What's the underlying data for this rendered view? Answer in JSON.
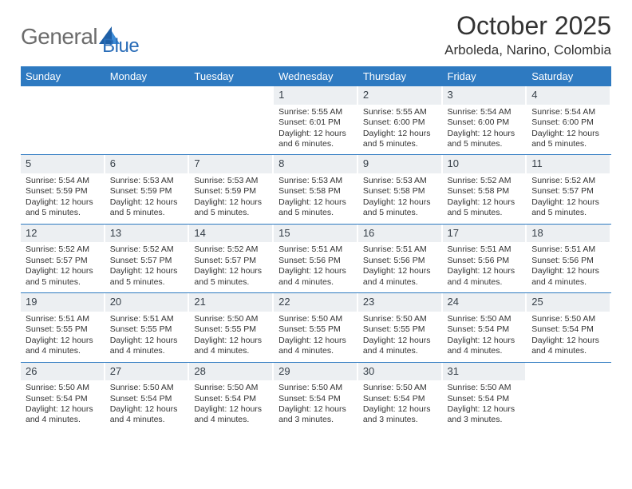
{
  "brand": {
    "text_gray": "General",
    "text_blue": "Blue"
  },
  "title": "October 2025",
  "location": "Arboleda, Narino, Colombia",
  "colors": {
    "header_bg": "#2e7ac1",
    "header_fg": "#ffffff",
    "daynum_bg": "#eceff2",
    "row_border": "#2e7ac1",
    "logo_gray": "#6c6c6c",
    "logo_blue": "#2a6db8",
    "page_bg": "#ffffff",
    "text": "#333333"
  },
  "weekdays": [
    "Sunday",
    "Monday",
    "Tuesday",
    "Wednesday",
    "Thursday",
    "Friday",
    "Saturday"
  ],
  "weeks": [
    [
      null,
      null,
      null,
      {
        "n": "1",
        "sr": "5:55 AM",
        "ss": "6:01 PM",
        "dh": "12",
        "dm": "6"
      },
      {
        "n": "2",
        "sr": "5:55 AM",
        "ss": "6:00 PM",
        "dh": "12",
        "dm": "5"
      },
      {
        "n": "3",
        "sr": "5:54 AM",
        "ss": "6:00 PM",
        "dh": "12",
        "dm": "5"
      },
      {
        "n": "4",
        "sr": "5:54 AM",
        "ss": "6:00 PM",
        "dh": "12",
        "dm": "5"
      }
    ],
    [
      {
        "n": "5",
        "sr": "5:54 AM",
        "ss": "5:59 PM",
        "dh": "12",
        "dm": "5"
      },
      {
        "n": "6",
        "sr": "5:53 AM",
        "ss": "5:59 PM",
        "dh": "12",
        "dm": "5"
      },
      {
        "n": "7",
        "sr": "5:53 AM",
        "ss": "5:59 PM",
        "dh": "12",
        "dm": "5"
      },
      {
        "n": "8",
        "sr": "5:53 AM",
        "ss": "5:58 PM",
        "dh": "12",
        "dm": "5"
      },
      {
        "n": "9",
        "sr": "5:53 AM",
        "ss": "5:58 PM",
        "dh": "12",
        "dm": "5"
      },
      {
        "n": "10",
        "sr": "5:52 AM",
        "ss": "5:58 PM",
        "dh": "12",
        "dm": "5"
      },
      {
        "n": "11",
        "sr": "5:52 AM",
        "ss": "5:57 PM",
        "dh": "12",
        "dm": "5"
      }
    ],
    [
      {
        "n": "12",
        "sr": "5:52 AM",
        "ss": "5:57 PM",
        "dh": "12",
        "dm": "5"
      },
      {
        "n": "13",
        "sr": "5:52 AM",
        "ss": "5:57 PM",
        "dh": "12",
        "dm": "5"
      },
      {
        "n": "14",
        "sr": "5:52 AM",
        "ss": "5:57 PM",
        "dh": "12",
        "dm": "5"
      },
      {
        "n": "15",
        "sr": "5:51 AM",
        "ss": "5:56 PM",
        "dh": "12",
        "dm": "4"
      },
      {
        "n": "16",
        "sr": "5:51 AM",
        "ss": "5:56 PM",
        "dh": "12",
        "dm": "4"
      },
      {
        "n": "17",
        "sr": "5:51 AM",
        "ss": "5:56 PM",
        "dh": "12",
        "dm": "4"
      },
      {
        "n": "18",
        "sr": "5:51 AM",
        "ss": "5:56 PM",
        "dh": "12",
        "dm": "4"
      }
    ],
    [
      {
        "n": "19",
        "sr": "5:51 AM",
        "ss": "5:55 PM",
        "dh": "12",
        "dm": "4"
      },
      {
        "n": "20",
        "sr": "5:51 AM",
        "ss": "5:55 PM",
        "dh": "12",
        "dm": "4"
      },
      {
        "n": "21",
        "sr": "5:50 AM",
        "ss": "5:55 PM",
        "dh": "12",
        "dm": "4"
      },
      {
        "n": "22",
        "sr": "5:50 AM",
        "ss": "5:55 PM",
        "dh": "12",
        "dm": "4"
      },
      {
        "n": "23",
        "sr": "5:50 AM",
        "ss": "5:55 PM",
        "dh": "12",
        "dm": "4"
      },
      {
        "n": "24",
        "sr": "5:50 AM",
        "ss": "5:54 PM",
        "dh": "12",
        "dm": "4"
      },
      {
        "n": "25",
        "sr": "5:50 AM",
        "ss": "5:54 PM",
        "dh": "12",
        "dm": "4"
      }
    ],
    [
      {
        "n": "26",
        "sr": "5:50 AM",
        "ss": "5:54 PM",
        "dh": "12",
        "dm": "4"
      },
      {
        "n": "27",
        "sr": "5:50 AM",
        "ss": "5:54 PM",
        "dh": "12",
        "dm": "4"
      },
      {
        "n": "28",
        "sr": "5:50 AM",
        "ss": "5:54 PM",
        "dh": "12",
        "dm": "4"
      },
      {
        "n": "29",
        "sr": "5:50 AM",
        "ss": "5:54 PM",
        "dh": "12",
        "dm": "3"
      },
      {
        "n": "30",
        "sr": "5:50 AM",
        "ss": "5:54 PM",
        "dh": "12",
        "dm": "3"
      },
      {
        "n": "31",
        "sr": "5:50 AM",
        "ss": "5:54 PM",
        "dh": "12",
        "dm": "3"
      },
      null
    ]
  ],
  "labels": {
    "sunrise": "Sunrise:",
    "sunset": "Sunset:",
    "daylight_prefix": "Daylight:",
    "hours_word": "hours",
    "and_word": "and",
    "minutes_word": "minutes."
  }
}
